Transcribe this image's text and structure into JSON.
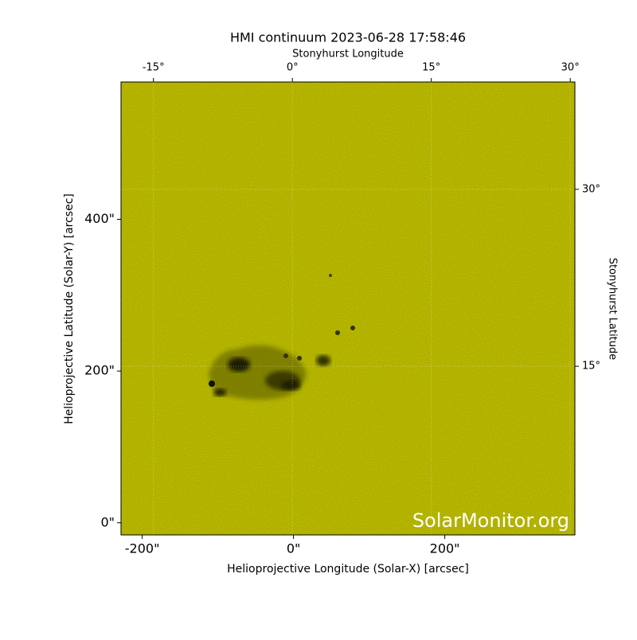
{
  "chart_data": {
    "type": "image",
    "title": "HMI continuum 2023-06-28 17:58:46",
    "xlabel": "Helioprojective Longitude (Solar-X) [arcsec]",
    "ylabel": "Helioprojective Latitude (Solar-Y) [arcsec]",
    "x2label": "Stonyhurst Longitude",
    "y2label": "Stonyhurst Latitude",
    "watermark": "SolarMonitor.org",
    "color": "#cccc00",
    "xlim": [
      -228,
      372
    ],
    "ylim": [
      -16,
      581
    ],
    "xticks": [
      {
        "value": -200,
        "label": "-200\""
      },
      {
        "value": 0,
        "label": "0\""
      },
      {
        "value": 200,
        "label": "200\""
      }
    ],
    "yticks": [
      {
        "value": 0,
        "label": "0\""
      },
      {
        "value": 200,
        "label": "200\""
      },
      {
        "value": 400,
        "label": "400\""
      }
    ],
    "x2lim": [
      -18.5,
      30.5
    ],
    "x2ticks": [
      {
        "value": -15,
        "label": "-15°"
      },
      {
        "value": 0,
        "label": "0°"
      },
      {
        "value": 15,
        "label": "15°"
      },
      {
        "value": 30,
        "label": "30°"
      }
    ],
    "y2lim": [
      0.7,
      39.1
    ],
    "y2ticks": [
      {
        "value": 15,
        "label": "15°"
      },
      {
        "value": 30,
        "label": "30°"
      }
    ],
    "grid": true
  }
}
